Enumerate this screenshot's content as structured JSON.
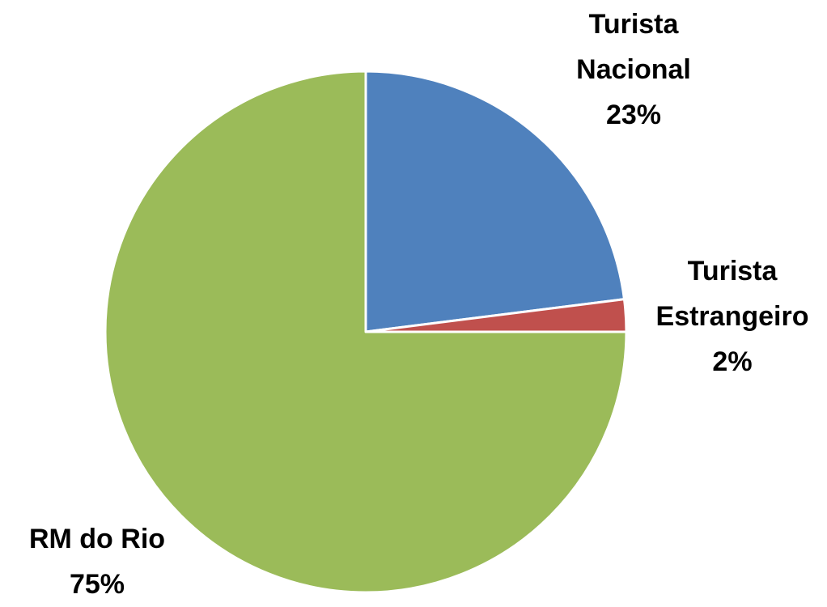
{
  "chart_data": {
    "type": "pie",
    "categories": [
      "Turista Nacional",
      "Turista Estrangeiro",
      "RM do Rio"
    ],
    "values": [
      23,
      2,
      75
    ],
    "value_labels": [
      "23%",
      "2%",
      "75%"
    ],
    "colors": [
      "#4f81bd",
      "#c0504d",
      "#9bbb59"
    ]
  }
}
